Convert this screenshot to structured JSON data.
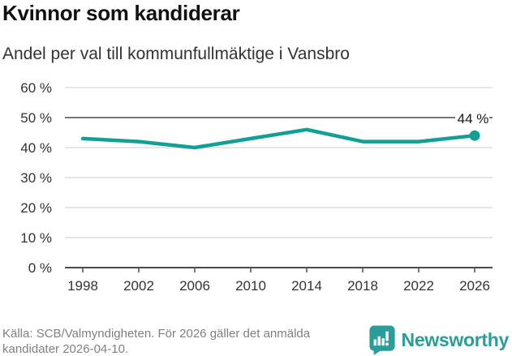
{
  "header": {
    "title": "Kvinnor som kandiderar",
    "subtitle": "Andel per val till kommunfullmäktige i Vansbro"
  },
  "chart_data": {
    "type": "line",
    "title": "Kvinnor som kandiderar",
    "subtitle": "Andel per val till kommunfullmäktige i Vansbro",
    "categories": [
      "1998",
      "2002",
      "2006",
      "2010",
      "2014",
      "2018",
      "2022",
      "2026"
    ],
    "values": [
      43,
      42,
      40,
      43,
      46,
      42,
      42,
      44
    ],
    "unit": "%",
    "xlabel": "",
    "ylabel": "",
    "ylim": [
      0,
      60
    ],
    "y_ticks": [
      0,
      10,
      20,
      30,
      40,
      50,
      60
    ],
    "y_tick_suffix": " %",
    "emphasized_gridline": 50,
    "grid": true,
    "legend": "none",
    "line_color": "#12A095",
    "endpoint_label": "44 %"
  },
  "footer": {
    "source_line1": "Källa: SCB/Valmyndigheten. För 2026 gäller det anmälda",
    "source_line2": "kandidater 2026-04-10.",
    "brand": "Newsworthy"
  },
  "colors": {
    "accent_teal": "#12A095",
    "brand_teal": "#2A9D98",
    "grid_light": "#E3E3E3",
    "grid_dark": "#757575",
    "axis": "#4B4B4B",
    "text_dark": "#111111",
    "text_gray": "#808080"
  }
}
